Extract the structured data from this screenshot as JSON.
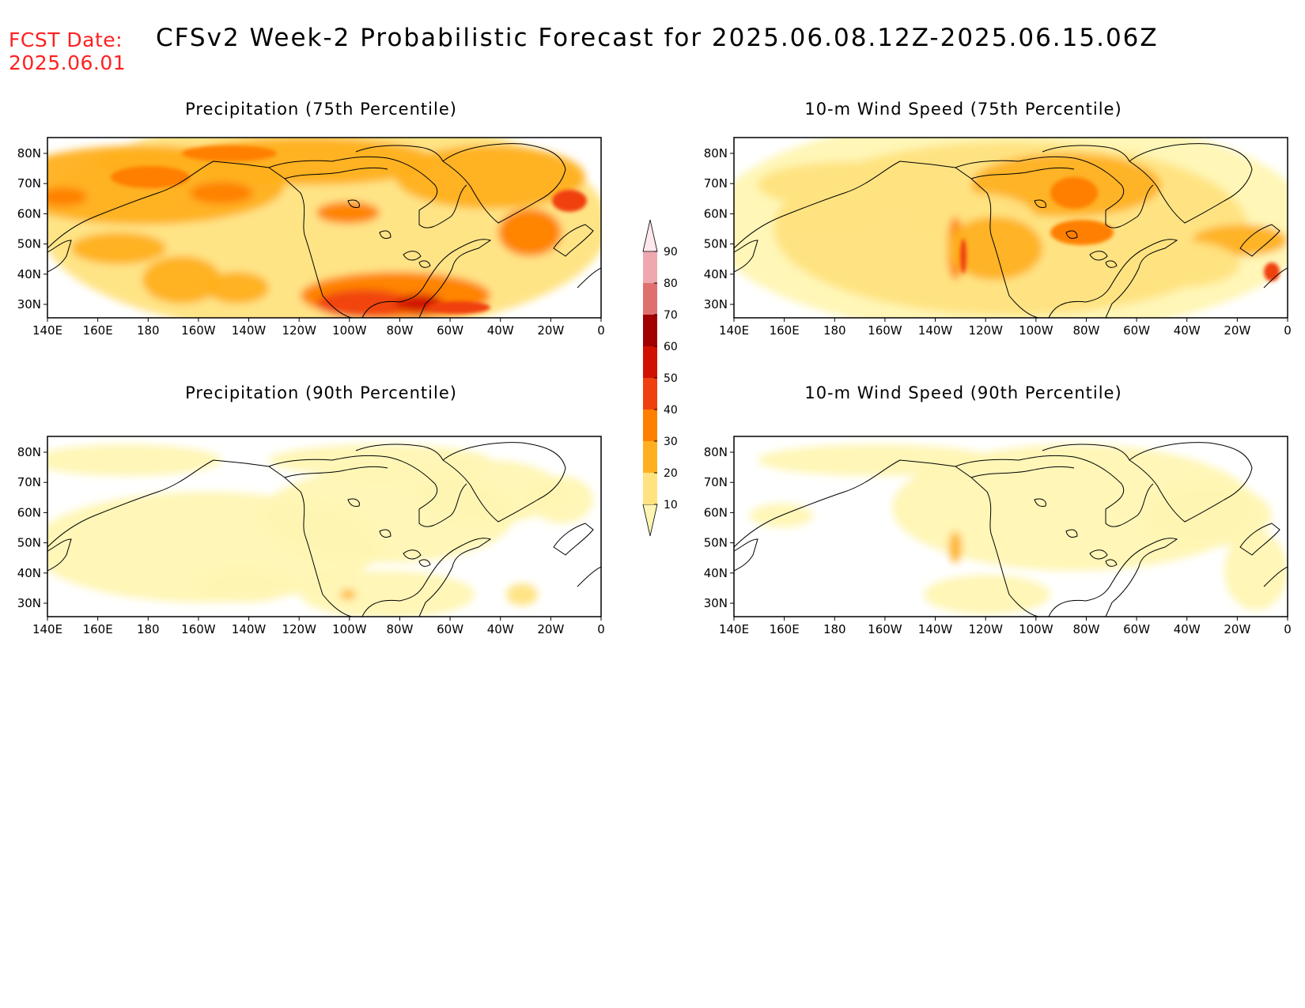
{
  "header": {
    "fcst_label": "FCST Date:",
    "fcst_date": "2025.06.01",
    "title": "CFSv2 Week-2 Probabilistic Forecast for 2025.06.08.12Z-2025.06.15.06Z"
  },
  "panels": [
    {
      "id": "precip75",
      "title": "Precipitation (75th Percentile)"
    },
    {
      "id": "wind75",
      "title": "10-m Wind Speed (75th Percentile)"
    },
    {
      "id": "precip90",
      "title": "Precipitation (90th Percentile)"
    },
    {
      "id": "wind90",
      "title": "10-m Wind Speed (90th Percentile)"
    }
  ],
  "axes": {
    "lon_labels": [
      "140E",
      "160E",
      "180",
      "160W",
      "140W",
      "120W",
      "100W",
      "80W",
      "60W",
      "40W",
      "20W",
      "0"
    ],
    "lat_labels": [
      "80N",
      "70N",
      "60N",
      "50N",
      "40N",
      "30N"
    ]
  },
  "colorbar": {
    "levels": [
      "10",
      "20",
      "30",
      "40",
      "50",
      "60",
      "70",
      "80",
      "90"
    ],
    "colors": [
      "#fff5b3",
      "#ffe380",
      "#ffb020",
      "#ff7f00",
      "#f04010",
      "#d01000",
      "#a00000",
      "#e07070",
      "#f0a8b0",
      "#ffe8ec"
    ]
  }
}
